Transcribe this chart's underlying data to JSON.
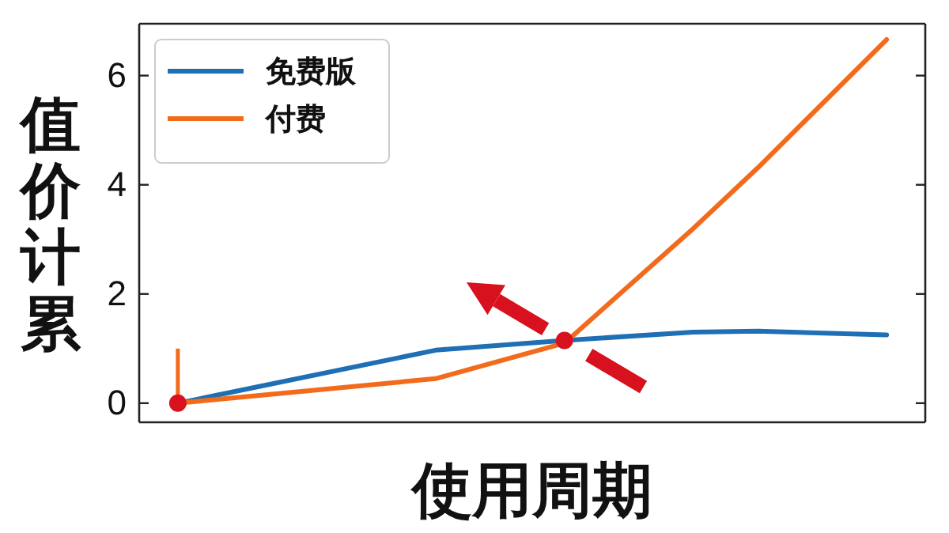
{
  "chart_data": {
    "type": "line",
    "xlabel": "使用周期",
    "ylabel": "值价计累",
    "categories": [
      null,
      null,
      null,
      null,
      null,
      null,
      null,
      null,
      null,
      null,
      null,
      null
    ],
    "ylim": [
      -0.35,
      6.95
    ],
    "yticks": [
      0,
      2,
      4,
      6
    ],
    "legend": "top left",
    "grid": false,
    "line_style": "solid",
    "marker": "none",
    "series": [
      {
        "name": "免费版",
        "color": "#1f6fb4",
        "values": [
          0,
          null,
          null,
          null,
          0.97,
          null,
          1.15,
          null,
          1.3,
          1.32,
          null,
          1.25
        ]
      },
      {
        "name": "付费",
        "color": "#f26b1d",
        "values": [
          0,
          null,
          null,
          null,
          0.45,
          null,
          1.1,
          null,
          3.2,
          4.31,
          null,
          6.66
        ],
        "errors": [
          [
            0,
            1
          ],
          null,
          null,
          null,
          null,
          null,
          null,
          null,
          null,
          null,
          null,
          null
        ]
      },
      {
        "type": "scatter",
        "color": "#d7121e",
        "marker": "circle",
        "values": [
          0,
          null,
          null,
          null,
          null,
          null,
          1.15,
          null,
          null,
          null,
          null,
          null
        ]
      }
    ]
  }
}
